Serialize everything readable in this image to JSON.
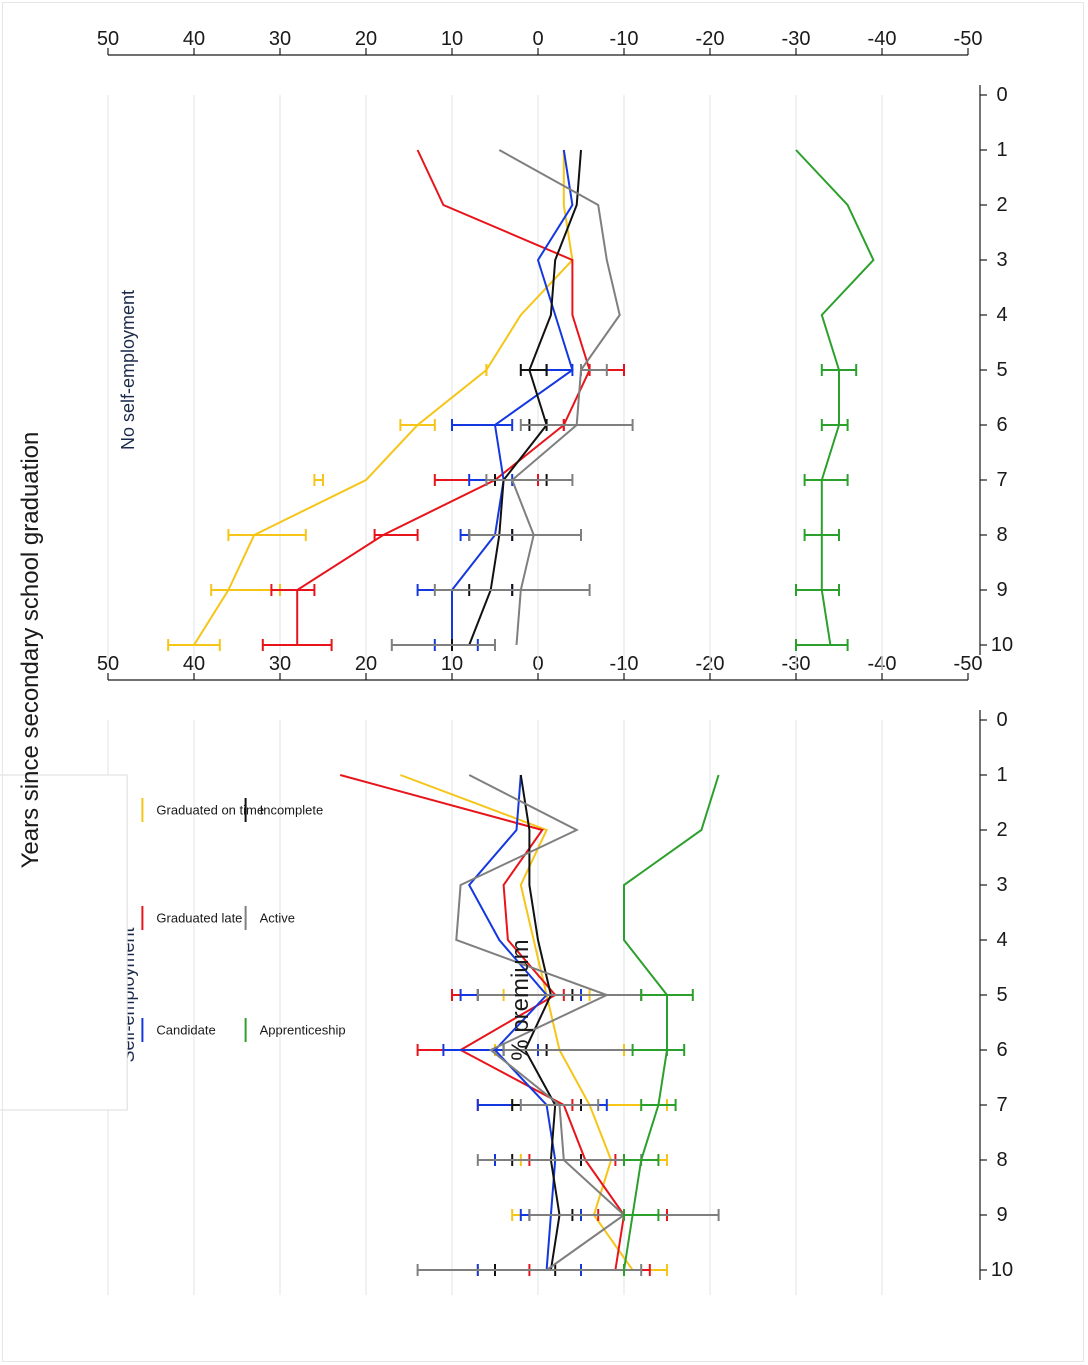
{
  "chart_data": [
    {
      "type": "line",
      "title": "Self-employment",
      "ylabel": "% premium",
      "xlabel": "Years since secondary school graduation",
      "x": [
        0,
        1,
        2,
        3,
        4,
        5,
        6,
        7,
        8,
        9,
        10
      ],
      "xlim": [
        0,
        10
      ],
      "ylim": [
        -50,
        50
      ],
      "yticks": [
        -50,
        -40,
        -30,
        -20,
        -10,
        0,
        10,
        20,
        30,
        40,
        50
      ],
      "grid": true,
      "legend_position": "top-left",
      "series": [
        {
          "name": "Graduated on time",
          "color": "#f5c518",
          "points": [
            [
              1,
              16
            ],
            [
              2,
              -1
            ],
            [
              3,
              2
            ],
            [
              4,
              0.5
            ],
            [
              5,
              -1
            ],
            [
              6,
              -2.5
            ],
            [
              7,
              -6
            ],
            [
              8,
              -8.5
            ],
            [
              9,
              -6.5
            ],
            [
              10,
              -11
            ]
          ],
          "errors": [
            [
              5,
              -6,
              4
            ],
            [
              6,
              -10,
              5
            ],
            [
              7,
              -15,
              3
            ],
            [
              8,
              -15,
              2
            ],
            [
              9,
              -10,
              3
            ],
            [
              10,
              -15,
              7
            ]
          ]
        },
        {
          "name": "Graduated late",
          "color": "#e8141b",
          "points": [
            [
              1,
              23
            ],
            [
              2,
              -0.5
            ],
            [
              3,
              4
            ],
            [
              4,
              3.5
            ],
            [
              5,
              -2
            ],
            [
              6,
              9
            ],
            [
              7,
              -3
            ],
            [
              8,
              -5.5
            ],
            [
              9,
              -10
            ],
            [
              10,
              -9
            ]
          ],
          "errors": [
            [
              5,
              -3,
              10
            ],
            [
              6,
              0,
              14
            ],
            [
              7,
              -4,
              7
            ],
            [
              8,
              -9,
              1
            ],
            [
              9,
              -15,
              -7
            ],
            [
              10,
              -13,
              1
            ]
          ]
        },
        {
          "name": "Candidate",
          "color": "#1438e0",
          "points": [
            [
              1,
              2
            ],
            [
              2,
              2.5
            ],
            [
              3,
              8
            ],
            [
              4,
              4.5
            ],
            [
              5,
              -1
            ],
            [
              6,
              5
            ],
            [
              7,
              -1
            ],
            [
              8,
              -2
            ],
            [
              9,
              -1.5
            ],
            [
              10,
              -1
            ]
          ],
          "errors": [
            [
              5,
              -5,
              9
            ],
            [
              6,
              0,
              11
            ],
            [
              7,
              -8,
              7
            ],
            [
              8,
              -5,
              5
            ],
            [
              9,
              -5,
              2
            ],
            [
              10,
              -5,
              7
            ]
          ]
        },
        {
          "name": "Incomplete",
          "color": "#111111",
          "points": [
            [
              1,
              2
            ],
            [
              2,
              1
            ],
            [
              3,
              1
            ],
            [
              4,
              0
            ],
            [
              5,
              -1.5
            ],
            [
              6,
              1.5
            ],
            [
              7,
              -2
            ],
            [
              8,
              -1.5
            ],
            [
              9,
              -2.5
            ],
            [
              10,
              -1.5
            ]
          ],
          "errors": [
            [
              5,
              -4,
              7
            ],
            [
              6,
              -1,
              4
            ],
            [
              7,
              -5,
              3
            ],
            [
              8,
              -5,
              3
            ],
            [
              9,
              -4,
              1
            ],
            [
              10,
              -2,
              5
            ]
          ]
        },
        {
          "name": "Active",
          "color": "#7f7f7f",
          "points": [
            [
              1,
              8
            ],
            [
              2,
              -4.5
            ],
            [
              3,
              9
            ],
            [
              4,
              9.5
            ],
            [
              5,
              -8
            ],
            [
              6,
              5.5
            ],
            [
              7,
              -2.5
            ],
            [
              8,
              -3
            ],
            [
              9,
              -10
            ],
            [
              10,
              -1
            ]
          ],
          "errors": [
            [
              5,
              -12,
              7
            ],
            [
              6,
              -15,
              4
            ],
            [
              7,
              -7,
              2
            ],
            [
              8,
              -12,
              7
            ],
            [
              9,
              -21,
              1
            ],
            [
              10,
              -12,
              14
            ]
          ]
        },
        {
          "name": "Apprenticeship",
          "color": "#2ca02c",
          "points": [
            [
              1,
              -21
            ],
            [
              2,
              -19
            ],
            [
              3,
              -10
            ],
            [
              4,
              -10
            ],
            [
              5,
              -15
            ],
            [
              6,
              -15
            ],
            [
              7,
              -14
            ],
            [
              8,
              -12
            ],
            [
              9,
              -11
            ],
            [
              10,
              -10
            ]
          ],
          "errors": [
            [
              5,
              -12,
              -18
            ],
            [
              6,
              -17,
              -11
            ],
            [
              7,
              -12,
              -16
            ],
            [
              8,
              -14,
              -10
            ],
            [
              9,
              -14,
              -10
            ],
            [
              10,
              -10,
              -10
            ]
          ]
        }
      ]
    },
    {
      "type": "line",
      "title": "No self-employment",
      "ylabel": "% premium",
      "xlabel": "Years since secondary school graduation",
      "x": [
        0,
        1,
        2,
        3,
        4,
        5,
        6,
        7,
        8,
        9,
        10
      ],
      "xlim": [
        0,
        10
      ],
      "ylim": [
        -50,
        50
      ],
      "yticks": [
        -50,
        -40,
        -30,
        -20,
        -10,
        0,
        10,
        20,
        30,
        40,
        50
      ],
      "grid": true,
      "series": [
        {
          "name": "Graduated on time",
          "color": "#f5c518",
          "points": [
            [
              1,
              -3
            ],
            [
              2,
              -3
            ],
            [
              3,
              -4
            ],
            [
              4,
              2
            ],
            [
              5,
              6
            ],
            [
              6,
              14
            ],
            [
              7,
              20
            ],
            [
              8,
              33
            ],
            [
              9,
              36
            ],
            [
              10,
              40
            ]
          ],
          "errors": [
            [
              5,
              6,
              6
            ],
            [
              6,
              12,
              16
            ],
            [
              7,
              25,
              26
            ],
            [
              8,
              27,
              36
            ],
            [
              9,
              30,
              38
            ],
            [
              10,
              37,
              43
            ]
          ]
        },
        {
          "name": "Graduated late",
          "color": "#e8141b",
          "points": [
            [
              1,
              14
            ],
            [
              2,
              11
            ],
            [
              3,
              -4
            ],
            [
              4,
              -4
            ],
            [
              5,
              -6
            ],
            [
              6,
              -3
            ],
            [
              7,
              5
            ],
            [
              8,
              18
            ],
            [
              9,
              28
            ],
            [
              10,
              28
            ]
          ],
          "errors": [
            [
              5,
              -10,
              -6
            ],
            [
              6,
              -3,
              -3
            ],
            [
              7,
              0,
              12
            ],
            [
              8,
              14,
              19
            ],
            [
              9,
              26,
              31
            ],
            [
              10,
              24,
              32
            ]
          ]
        },
        {
          "name": "Candidate",
          "color": "#1438e0",
          "points": [
            [
              1,
              -3
            ],
            [
              2,
              -4
            ],
            [
              3,
              0
            ],
            [
              4,
              -2
            ],
            [
              5,
              -4
            ],
            [
              6,
              5
            ],
            [
              7,
              4
            ],
            [
              8,
              5
            ],
            [
              9,
              10
            ],
            [
              10,
              10
            ]
          ],
          "errors": [
            [
              5,
              -4,
              -1
            ],
            [
              6,
              3,
              10
            ],
            [
              7,
              3,
              8
            ],
            [
              8,
              3,
              9
            ],
            [
              9,
              3,
              14
            ],
            [
              10,
              7,
              12
            ]
          ]
        },
        {
          "name": "Incomplete",
          "color": "#111111",
          "points": [
            [
              1,
              -5
            ],
            [
              2,
              -4.5
            ],
            [
              3,
              -2
            ],
            [
              4,
              -1.5
            ],
            [
              5,
              1
            ],
            [
              6,
              -1
            ],
            [
              7,
              4
            ],
            [
              8,
              4.5
            ],
            [
              9,
              5.5
            ],
            [
              10,
              8
            ]
          ],
          "errors": [
            [
              5,
              -1,
              2
            ],
            [
              6,
              -1,
              1
            ],
            [
              7,
              -1,
              5
            ],
            [
              8,
              3,
              8
            ],
            [
              9,
              3,
              8
            ],
            [
              10,
              5,
              10
            ]
          ]
        },
        {
          "name": "Active",
          "color": "#7f7f7f",
          "points": [
            [
              1,
              4.5
            ],
            [
              2,
              -7
            ],
            [
              3,
              -8
            ],
            [
              4,
              -9.5
            ],
            [
              5,
              -5
            ],
            [
              6,
              -4.5
            ],
            [
              7,
              3
            ],
            [
              8,
              0.5
            ],
            [
              9,
              2
            ],
            [
              10,
              2.5
            ]
          ],
          "errors": [
            [
              5,
              -8,
              -5
            ],
            [
              6,
              -11,
              2
            ],
            [
              7,
              -4,
              6
            ],
            [
              8,
              -5,
              8
            ],
            [
              9,
              -6,
              12
            ],
            [
              10,
              5,
              17
            ]
          ]
        },
        {
          "name": "Apprenticeship",
          "color": "#2ca02c",
          "points": [
            [
              1,
              -30
            ],
            [
              2,
              -36
            ],
            [
              3,
              -39
            ],
            [
              4,
              -33
            ],
            [
              5,
              -35
            ],
            [
              6,
              -35
            ],
            [
              7,
              -33
            ],
            [
              8,
              -33
            ],
            [
              9,
              -33
            ],
            [
              10,
              -34
            ]
          ],
          "errors": [
            [
              5,
              -37,
              -33
            ],
            [
              6,
              -36,
              -33
            ],
            [
              7,
              -36,
              -31
            ],
            [
              8,
              -35,
              -31
            ],
            [
              9,
              -35,
              -30
            ],
            [
              10,
              -36,
              -30
            ]
          ]
        }
      ]
    }
  ]
}
